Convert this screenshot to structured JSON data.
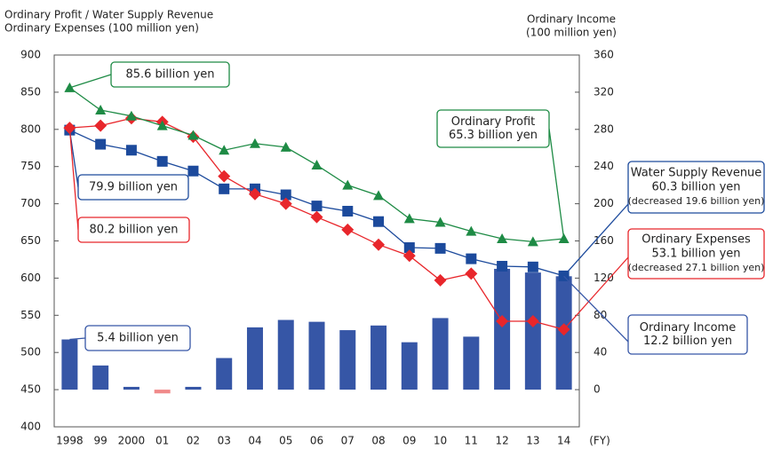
{
  "chart_data": {
    "type": "bar-line",
    "y_title_lines": [
      "Ordinary Profit / Water Supply Revenue",
      "Ordinary Expenses (100 million yen)"
    ],
    "y2_title_lines": [
      "Ordinary Income",
      "(100 million yen)"
    ],
    "x_unit": "(FY)",
    "categories": [
      "1998",
      "99",
      "2000",
      "01",
      "02",
      "03",
      "04",
      "05",
      "06",
      "07",
      "08",
      "09",
      "10",
      "11",
      "12",
      "13",
      "14"
    ],
    "ylim": [
      400,
      900
    ],
    "yticks": [
      400,
      450,
      500,
      550,
      600,
      650,
      700,
      750,
      800,
      850,
      900
    ],
    "y2lim": [
      -40,
      360
    ],
    "y2ticks": [
      0,
      40,
      80,
      120,
      160,
      200,
      240,
      280,
      320,
      360
    ],
    "series": [
      {
        "kind": "bar",
        "axis": "y2",
        "color": "#3656a6",
        "negative_color": "#f08a8a",
        "values": [
          54,
          26,
          3,
          -4,
          3,
          34,
          67,
          75,
          73,
          64,
          69,
          51,
          77,
          57,
          130,
          126,
          122
        ]
      },
      {
        "kind": "line",
        "marker": "square",
        "color": "#1c4a9c",
        "values": [
          799,
          780,
          772,
          757,
          744,
          720,
          720,
          712,
          697,
          690,
          676,
          641,
          640,
          626,
          616,
          615,
          603
        ]
      },
      {
        "kind": "line",
        "marker": "diamond",
        "color": "#e8262b",
        "values": [
          802,
          805,
          815,
          810,
          790,
          737,
          713,
          700,
          682,
          665,
          645,
          630,
          597,
          606,
          542,
          542,
          531
        ]
      },
      {
        "kind": "line",
        "marker": "triangle",
        "color": "#1e8b45",
        "values": [
          856,
          826,
          818,
          805,
          792,
          772,
          781,
          776,
          752,
          725,
          711,
          680,
          675,
          663,
          653,
          649,
          653
        ]
      }
    ],
    "annotations": [
      {
        "color": "#1e8b45",
        "lines": [
          "85.6 billion yen"
        ]
      },
      {
        "color": "#1e8b45",
        "lines": [
          "Ordinary Profit",
          "65.3 billion yen"
        ]
      },
      {
        "color": "#1c4a9c",
        "lines": [
          "79.9 billion yen"
        ]
      },
      {
        "color": "#e8262b",
        "lines": [
          "80.2 billion yen"
        ]
      },
      {
        "color": "#3656a6",
        "lines": [
          "5.4 billion yen"
        ]
      },
      {
        "color": "#1c4a9c",
        "lines": [
          "Water Supply Revenue",
          "60.3 billion yen",
          "(decreased 19.6 billion yen)"
        ]
      },
      {
        "color": "#e8262b",
        "lines": [
          "Ordinary Expenses",
          "53.1 billion yen",
          "(decreased 27.1 billion yen)"
        ]
      },
      {
        "color": "#3656a6",
        "lines": [
          "Ordinary Income",
          "12.2 billion yen"
        ]
      }
    ]
  }
}
